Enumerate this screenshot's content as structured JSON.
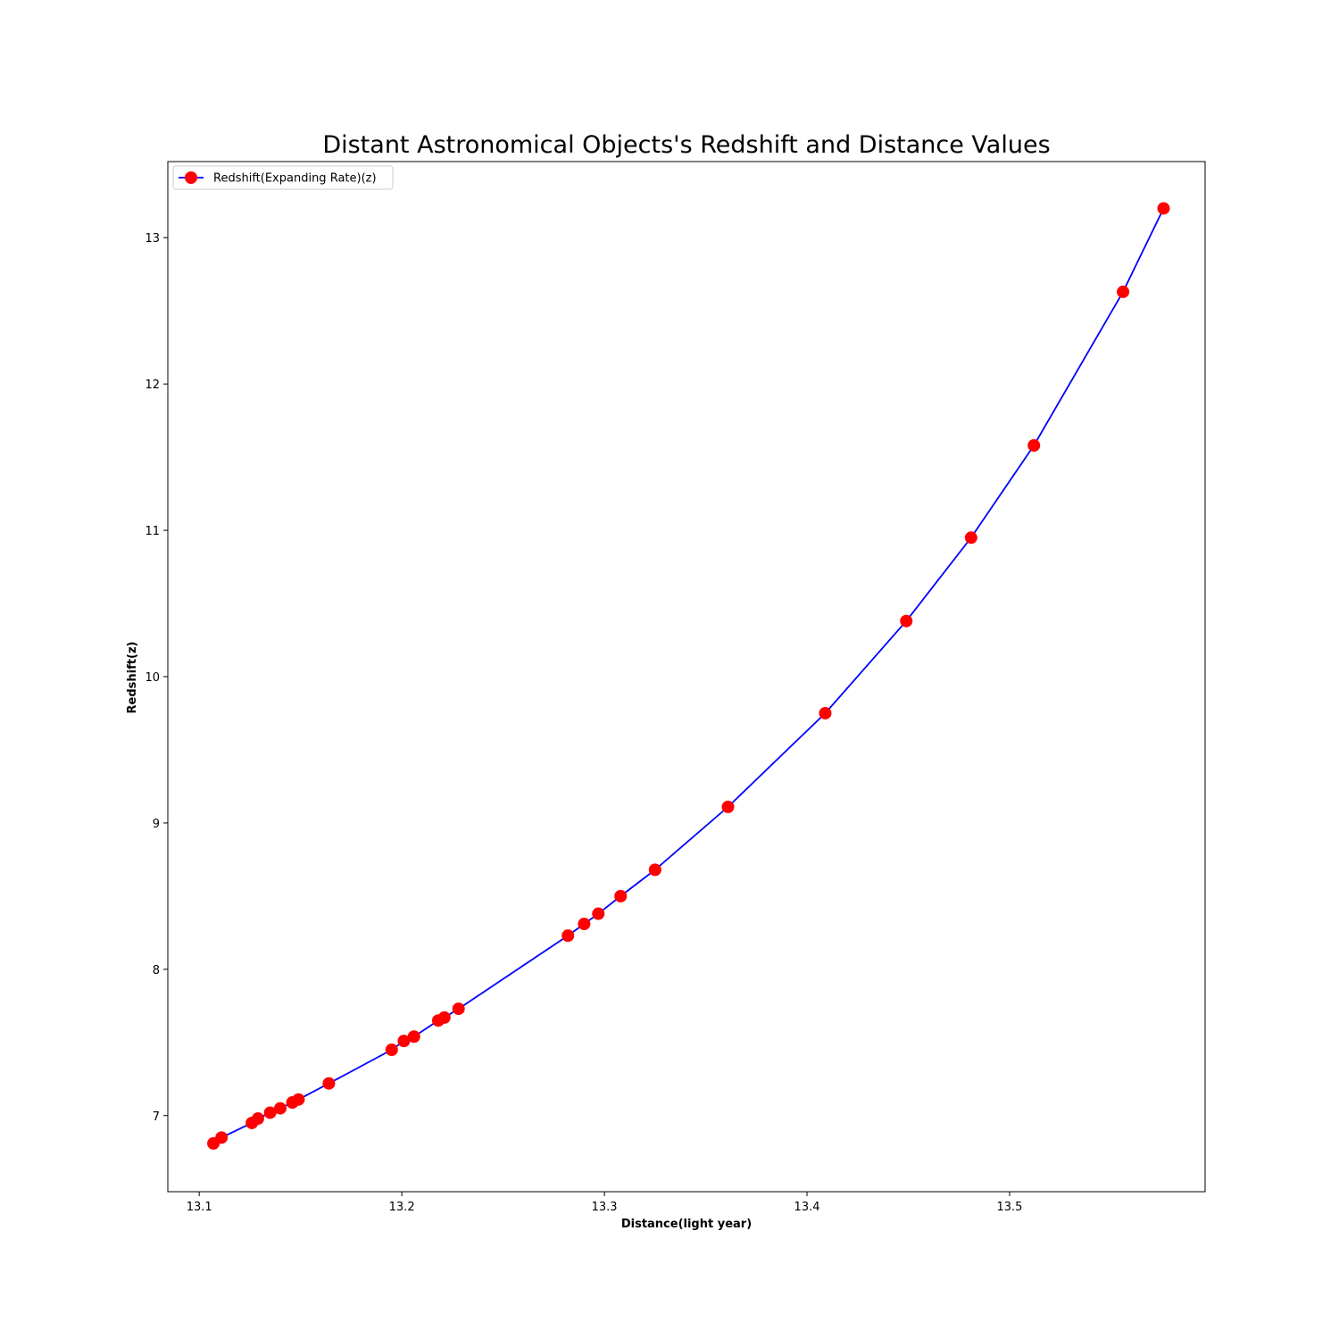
{
  "chart_data": {
    "type": "line",
    "title": "Distant Astronomical Objects's Redshift and Distance Values",
    "xlabel": "Distance(light year)",
    "ylabel": "Redshift(z)",
    "xlim": [
      13.0845,
      13.5965
    ],
    "ylim": [
      6.48,
      13.52
    ],
    "xticks": [
      "13.1",
      "13.2",
      "13.3",
      "13.4",
      "13.5"
    ],
    "yticks": [
      "7",
      "8",
      "9",
      "10",
      "11",
      "12",
      "13"
    ],
    "grid": false,
    "legend_position": "top-left",
    "series": [
      {
        "name": "Redshift(Expanding Rate)(z)",
        "line_color": "#0000ff",
        "marker_color": "#ff0000",
        "marker": "circle",
        "x": [
          13.107,
          13.111,
          13.126,
          13.129,
          13.135,
          13.14,
          13.146,
          13.149,
          13.164,
          13.195,
          13.201,
          13.206,
          13.218,
          13.221,
          13.228,
          13.282,
          13.29,
          13.297,
          13.308,
          13.325,
          13.361,
          13.409,
          13.449,
          13.481,
          13.512,
          13.556,
          13.576
        ],
        "y": [
          6.81,
          6.85,
          6.95,
          6.98,
          7.02,
          7.05,
          7.09,
          7.11,
          7.22,
          7.45,
          7.51,
          7.54,
          7.65,
          7.67,
          7.73,
          8.23,
          8.31,
          8.38,
          8.5,
          8.68,
          9.11,
          9.75,
          10.38,
          10.95,
          11.58,
          12.63,
          13.2
        ]
      }
    ]
  }
}
